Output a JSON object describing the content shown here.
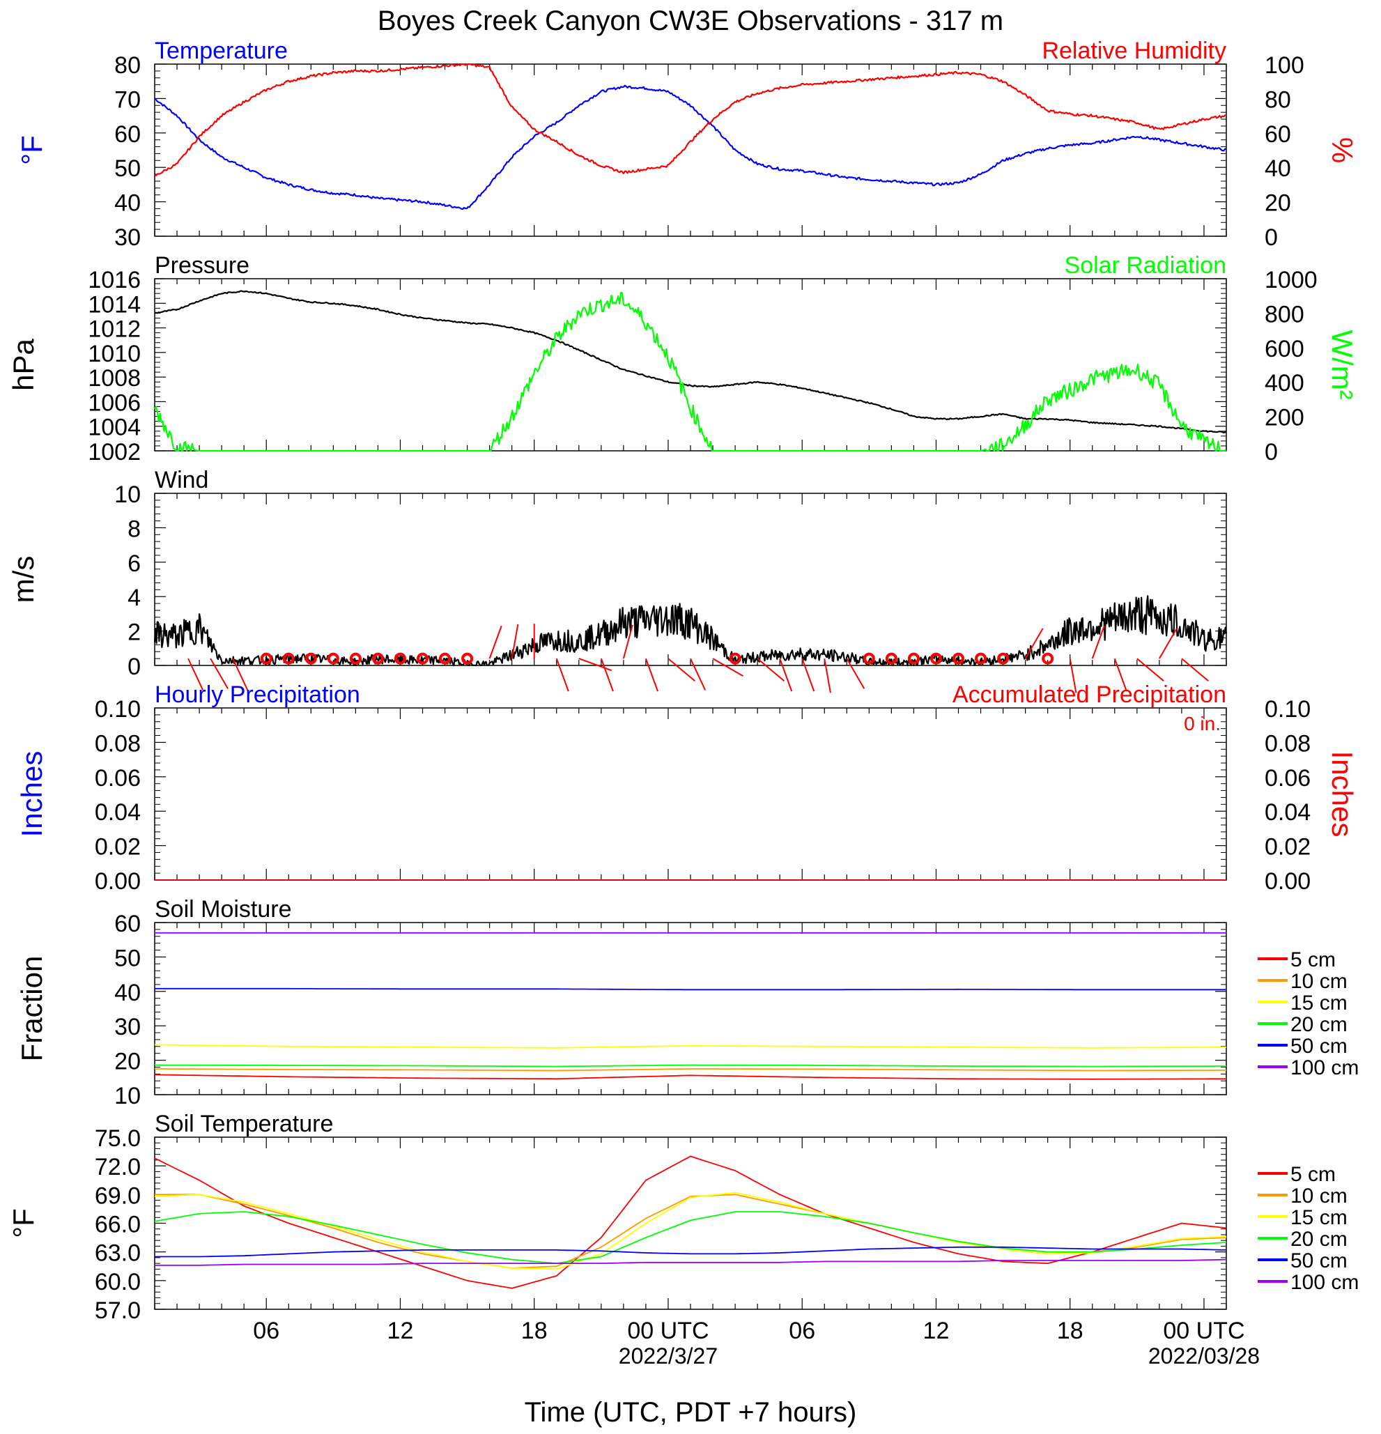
{
  "title": "Boyes Creek Canyon CW3E Observations - 317 m",
  "xaxis": {
    "label": "Time (UTC, PDT +7 hours)",
    "range_hours": [
      0,
      48
    ],
    "ticks": [
      {
        "hour": 5,
        "label": "06",
        "sub": ""
      },
      {
        "hour": 11,
        "label": "12",
        "sub": ""
      },
      {
        "hour": 17,
        "label": "18",
        "sub": ""
      },
      {
        "hour": 23,
        "label": "00 UTC",
        "sub": "2022/3/27"
      },
      {
        "hour": 29,
        "label": "06",
        "sub": ""
      },
      {
        "hour": 35,
        "label": "12",
        "sub": ""
      },
      {
        "hour": 41,
        "label": "18",
        "sub": ""
      },
      {
        "hour": 47,
        "label": "00 UTC",
        "sub": "2022/03/28"
      }
    ]
  },
  "legend": {
    "labels": [
      "5 cm",
      "10 cm",
      "15 cm",
      "20 cm",
      "50 cm",
      "100 cm"
    ],
    "colors": [
      "#ff0000",
      "#ff9900",
      "#ffff00",
      "#00ff00",
      "#0000ff",
      "#9900ff"
    ]
  },
  "chart_data": [
    {
      "type": "line",
      "left_title": "Temperature",
      "right_title": "Relative Humidity",
      "ylabel": "°F",
      "ylabel_right": "%",
      "ylim": [
        30,
        80
      ],
      "ylim_right": [
        0,
        100
      ],
      "yticks": [
        "30",
        "40",
        "50",
        "60",
        "70",
        "80"
      ],
      "yticks_right": [
        "0",
        "20",
        "40",
        "60",
        "80",
        "100"
      ],
      "x_hours": [
        0,
        1,
        2,
        3,
        4,
        5,
        6,
        7,
        8,
        9,
        10,
        11,
        12,
        13,
        14,
        15,
        16,
        17,
        18,
        19,
        20,
        21,
        22,
        23,
        24,
        25,
        26,
        27,
        28,
        29,
        30,
        31,
        32,
        33,
        34,
        35,
        36,
        37,
        38,
        39,
        40,
        41,
        42,
        43,
        44,
        45,
        46,
        47,
        48
      ],
      "series": [
        {
          "name": "Temperature",
          "axis": "left",
          "color": "#0000ff",
          "values": [
            70,
            65,
            58,
            53,
            50,
            47,
            45,
            43.5,
            42.5,
            42,
            41,
            40.5,
            40,
            39,
            38,
            45,
            53,
            59,
            63,
            68,
            72,
            73.5,
            73,
            72,
            68,
            62,
            55,
            51,
            49.5,
            49,
            48,
            47,
            46.5,
            46,
            45.5,
            45,
            45.5,
            48,
            52,
            54,
            55.5,
            56.5,
            57,
            58,
            59,
            58,
            57,
            56,
            55
          ]
        },
        {
          "name": "Relative Humidity",
          "axis": "right",
          "color": "#ff0000",
          "values": [
            35,
            42,
            58,
            70,
            78,
            85,
            90,
            93,
            95,
            96,
            96,
            97,
            98,
            99,
            100,
            98,
            75,
            62,
            55,
            47,
            41,
            37,
            39,
            41,
            55,
            68,
            78,
            83,
            86,
            88,
            89,
            90,
            91,
            92,
            93,
            94,
            95,
            94,
            90,
            82,
            73,
            71,
            70,
            68,
            66,
            62,
            65,
            68,
            70
          ]
        }
      ]
    },
    {
      "type": "line",
      "left_title": "Pressure",
      "right_title": "Solar Radiation",
      "ylabel": "hPa",
      "ylabel_right": "W/m²",
      "ylim": [
        1002,
        1016
      ],
      "ylim_right": [
        0,
        1000
      ],
      "yticks": [
        "1002",
        "1004",
        "1006",
        "1008",
        "1010",
        "1012",
        "1014",
        "1016"
      ],
      "yticks_right": [
        "0",
        "200",
        "400",
        "600",
        "800",
        "1000"
      ],
      "x_hours": [
        0,
        1,
        2,
        3,
        4,
        5,
        6,
        7,
        8,
        9,
        10,
        11,
        12,
        13,
        14,
        15,
        16,
        17,
        18,
        19,
        20,
        21,
        22,
        23,
        24,
        25,
        26,
        27,
        28,
        29,
        30,
        31,
        32,
        33,
        34,
        35,
        36,
        37,
        38,
        39,
        40,
        41,
        42,
        43,
        44,
        45,
        46,
        47,
        48
      ],
      "series": [
        {
          "name": "Pressure",
          "axis": "left",
          "color": "#000000",
          "values": [
            1013.2,
            1013.5,
            1014.2,
            1014.8,
            1015,
            1014.8,
            1014.4,
            1014.1,
            1014,
            1013.8,
            1013.5,
            1013.1,
            1012.8,
            1012.6,
            1012.4,
            1012.3,
            1012,
            1011.6,
            1011,
            1010.2,
            1009.4,
            1008.6,
            1008.1,
            1007.6,
            1007.3,
            1007.2,
            1007.4,
            1007.6,
            1007.4,
            1007.1,
            1006.7,
            1006.3,
            1005.9,
            1005.4,
            1004.8,
            1004.6,
            1004.6,
            1004.8,
            1005,
            1004.6,
            1004.6,
            1004.5,
            1004.3,
            1004.2,
            1004.1,
            1004,
            1003.8,
            1003.6,
            1003.5
          ]
        },
        {
          "name": "Solar Radiation",
          "axis": "right",
          "color": "#00ff00",
          "values": [
            250,
            20,
            0,
            0,
            0,
            0,
            0,
            0,
            0,
            0,
            0,
            0,
            0,
            0,
            0,
            0,
            200,
            450,
            650,
            800,
            850,
            880,
            750,
            550,
            250,
            0,
            0,
            0,
            0,
            0,
            0,
            0,
            0,
            0,
            0,
            0,
            0,
            0,
            30,
            150,
            300,
            350,
            420,
            450,
            470,
            380,
            150,
            50,
            0
          ]
        }
      ]
    },
    {
      "type": "line",
      "left_title": "Wind",
      "ylabel": "m/s",
      "ylim": [
        0,
        10
      ],
      "yticks": [
        "0",
        "2",
        "4",
        "6",
        "8",
        "10"
      ],
      "x_hours": [
        0,
        1,
        2,
        3,
        4,
        5,
        6,
        7,
        8,
        9,
        10,
        11,
        12,
        13,
        14,
        15,
        16,
        17,
        18,
        19,
        20,
        21,
        22,
        23,
        24,
        25,
        26,
        27,
        28,
        29,
        30,
        31,
        32,
        33,
        34,
        35,
        36,
        37,
        38,
        39,
        40,
        41,
        42,
        43,
        44,
        45,
        46,
        47,
        48
      ],
      "series": [
        {
          "name": "Wind",
          "axis": "left",
          "color": "#000000",
          "values": [
            1.8,
            1.7,
            2.2,
            0.3,
            0.3,
            0.3,
            0.4,
            0.4,
            0.3,
            0.2,
            0.4,
            0.3,
            0.3,
            0.3,
            0.1,
            0.1,
            0.6,
            1.2,
            1.5,
            1.4,
            1.8,
            2.5,
            2.6,
            2.8,
            2.5,
            1.5,
            0.3,
            0.5,
            0.6,
            0.7,
            0.6,
            0.5,
            0.2,
            0.2,
            0.2,
            0.4,
            0.3,
            0.2,
            0.4,
            0.6,
            1.2,
            2.0,
            2.3,
            2.6,
            3.0,
            2.8,
            2.4,
            1.5,
            1.6
          ]
        }
      ],
      "barbs": [
        {
          "hour": 1.5,
          "calm": false,
          "angle": 155
        },
        {
          "hour": 2.5,
          "calm": false,
          "angle": 150
        },
        {
          "hour": 3.5,
          "calm": false,
          "angle": 155
        },
        {
          "hour": 5,
          "calm": true
        },
        {
          "hour": 6,
          "calm": true
        },
        {
          "hour": 7,
          "calm": true
        },
        {
          "hour": 8,
          "calm": true
        },
        {
          "hour": 9,
          "calm": true
        },
        {
          "hour": 10,
          "calm": true
        },
        {
          "hour": 11,
          "calm": true
        },
        {
          "hour": 12,
          "calm": true
        },
        {
          "hour": 13,
          "calm": true
        },
        {
          "hour": 14,
          "calm": true
        },
        {
          "hour": 15,
          "calm": false,
          "angle": 20
        },
        {
          "hour": 16,
          "calm": false,
          "angle": 10
        },
        {
          "hour": 17,
          "calm": false,
          "angle": 0
        },
        {
          "hour": 18,
          "calm": false,
          "angle": 160
        },
        {
          "hour": 19,
          "calm": false,
          "angle": 110
        },
        {
          "hour": 20,
          "calm": false,
          "angle": 160
        },
        {
          "hour": 21,
          "calm": false,
          "angle": 15
        },
        {
          "hour": 22,
          "calm": false,
          "angle": 160
        },
        {
          "hour": 23,
          "calm": false,
          "angle": 130
        },
        {
          "hour": 24,
          "calm": false,
          "angle": 155
        },
        {
          "hour": 25,
          "calm": false,
          "angle": 120
        },
        {
          "hour": 26,
          "calm": true
        },
        {
          "hour": 27,
          "calm": false,
          "angle": 130
        },
        {
          "hour": 28,
          "calm": false,
          "angle": 160
        },
        {
          "hour": 29,
          "calm": false,
          "angle": 160
        },
        {
          "hour": 30,
          "calm": false,
          "angle": 170
        },
        {
          "hour": 31,
          "calm": false,
          "angle": 150
        },
        {
          "hour": 32,
          "calm": true
        },
        {
          "hour": 33,
          "calm": true
        },
        {
          "hour": 34,
          "calm": true
        },
        {
          "hour": 35,
          "calm": true
        },
        {
          "hour": 36,
          "calm": true
        },
        {
          "hour": 37,
          "calm": true
        },
        {
          "hour": 38,
          "calm": true
        },
        {
          "hour": 39,
          "calm": false,
          "angle": 30
        },
        {
          "hour": 40,
          "calm": true
        },
        {
          "hour": 41,
          "calm": false,
          "angle": 170
        },
        {
          "hour": 42,
          "calm": false,
          "angle": 20
        },
        {
          "hour": 43,
          "calm": false,
          "angle": 160
        },
        {
          "hour": 44,
          "calm": false,
          "angle": 130
        },
        {
          "hour": 45,
          "calm": false,
          "angle": 30
        },
        {
          "hour": 46,
          "calm": false,
          "angle": 130
        }
      ]
    },
    {
      "type": "line",
      "left_title": "Hourly Precipitation",
      "right_title": "Accumulated Precipitation",
      "annotation": "0 in.",
      "ylabel": "Inches",
      "ylabel_right": "Inches",
      "ylim": [
        0,
        0.1
      ],
      "ylim_right": [
        0,
        0.1
      ],
      "yticks": [
        "0.00",
        "0.02",
        "0.04",
        "0.06",
        "0.08",
        "0.10"
      ],
      "yticks_right": [
        "0.00",
        "0.02",
        "0.04",
        "0.06",
        "0.08",
        "0.10"
      ],
      "x_hours": [
        0,
        48
      ],
      "series": [
        {
          "name": "Hourly Precipitation",
          "axis": "left",
          "color": "#0000ff",
          "values": [
            0,
            0
          ]
        },
        {
          "name": "Accumulated Precipitation",
          "axis": "right",
          "color": "#ff0000",
          "values": [
            0,
            0
          ]
        }
      ]
    },
    {
      "type": "line",
      "left_title": "Soil Moisture",
      "ylabel": "Fraction",
      "ylim": [
        10,
        60
      ],
      "yticks": [
        "10",
        "20",
        "30",
        "40",
        "50",
        "60"
      ],
      "x_hours": [
        0,
        6,
        12,
        18,
        24,
        30,
        36,
        42,
        48
      ],
      "series": [
        {
          "name": "5 cm",
          "color": "#ff0000",
          "values": [
            15.8,
            15.2,
            14.8,
            14.6,
            15.6,
            15.0,
            14.6,
            14.5,
            14.6
          ]
        },
        {
          "name": "10 cm",
          "color": "#ff9900",
          "values": [
            17.5,
            17.3,
            17.2,
            17.0,
            17.5,
            17.4,
            17.2,
            17.0,
            17.1
          ]
        },
        {
          "name": "15 cm",
          "color": "#ffff00",
          "values": [
            24.5,
            24.0,
            23.8,
            23.6,
            24.2,
            24.0,
            23.8,
            23.6,
            23.8
          ]
        },
        {
          "name": "20 cm",
          "color": "#00ff00",
          "values": [
            18.6,
            18.5,
            18.4,
            18.2,
            18.6,
            18.5,
            18.3,
            18.2,
            18.3
          ]
        },
        {
          "name": "50 cm",
          "color": "#0000ff",
          "values": [
            40.8,
            40.8,
            40.7,
            40.7,
            40.5,
            40.5,
            40.6,
            40.5,
            40.5
          ]
        },
        {
          "name": "100 cm",
          "color": "#9900ff",
          "values": [
            57.0,
            57.0,
            57.0,
            57.0,
            57.0,
            57.0,
            57.0,
            57.0,
            57.0
          ]
        }
      ]
    },
    {
      "type": "line",
      "left_title": "Soil Temperature",
      "ylabel": "°F",
      "ylim": [
        57,
        75
      ],
      "yticks": [
        "57.0",
        "60.0",
        "63.0",
        "66.0",
        "69.0",
        "72.0",
        "75.0"
      ],
      "x_hours": [
        0,
        2,
        4,
        6,
        8,
        10,
        12,
        14,
        16,
        18,
        20,
        22,
        24,
        26,
        28,
        30,
        32,
        34,
        36,
        38,
        40,
        42,
        44,
        46,
        48
      ],
      "series": [
        {
          "name": "5 cm",
          "color": "#ff0000",
          "values": [
            72.8,
            70.5,
            67.8,
            66.0,
            64.5,
            63.0,
            61.5,
            60.0,
            59.2,
            60.5,
            64.5,
            70.5,
            73.0,
            71.5,
            69.0,
            67.0,
            65.5,
            64.0,
            62.8,
            62.0,
            61.8,
            63.0,
            64.5,
            66.0,
            65.5
          ]
        },
        {
          "name": "10 cm",
          "color": "#ff9900",
          "values": [
            69.0,
            69.0,
            68.0,
            66.8,
            65.5,
            64.0,
            62.8,
            62.0,
            61.3,
            61.5,
            63.5,
            66.5,
            68.8,
            69.0,
            68.0,
            67.0,
            66.0,
            65.0,
            64.0,
            63.3,
            62.8,
            63.0,
            63.5,
            64.3,
            64.5
          ]
        },
        {
          "name": "15 cm",
          "color": "#ffff00",
          "values": [
            68.8,
            69.0,
            68.2,
            67.0,
            65.7,
            64.3,
            63.0,
            62.0,
            61.3,
            61.2,
            62.8,
            66.0,
            68.7,
            69.2,
            68.2,
            67.0,
            66.0,
            65.0,
            64.0,
            63.3,
            62.8,
            62.9,
            63.6,
            64.4,
            64.6
          ]
        },
        {
          "name": "20 cm",
          "color": "#00ff00",
          "values": [
            66.2,
            67.0,
            67.2,
            66.7,
            65.8,
            64.8,
            63.8,
            62.9,
            62.2,
            61.8,
            62.5,
            64.5,
            66.3,
            67.2,
            67.2,
            66.7,
            66.0,
            65.0,
            64.1,
            63.4,
            63.0,
            63.0,
            63.3,
            63.7,
            64.0
          ]
        },
        {
          "name": "50 cm",
          "color": "#0000ff",
          "values": [
            62.5,
            62.5,
            62.6,
            62.8,
            63.0,
            63.1,
            63.2,
            63.2,
            63.2,
            63.2,
            63.1,
            62.9,
            62.8,
            62.8,
            62.9,
            63.1,
            63.3,
            63.4,
            63.5,
            63.5,
            63.4,
            63.3,
            63.3,
            63.3,
            63.2
          ]
        },
        {
          "name": "100 cm",
          "color": "#9900ff",
          "values": [
            61.6,
            61.6,
            61.7,
            61.7,
            61.7,
            61.7,
            61.8,
            61.8,
            61.8,
            61.8,
            61.8,
            61.9,
            61.9,
            61.9,
            61.9,
            62.0,
            62.0,
            62.0,
            62.0,
            62.1,
            62.1,
            62.1,
            62.1,
            62.1,
            62.2
          ]
        }
      ]
    }
  ]
}
